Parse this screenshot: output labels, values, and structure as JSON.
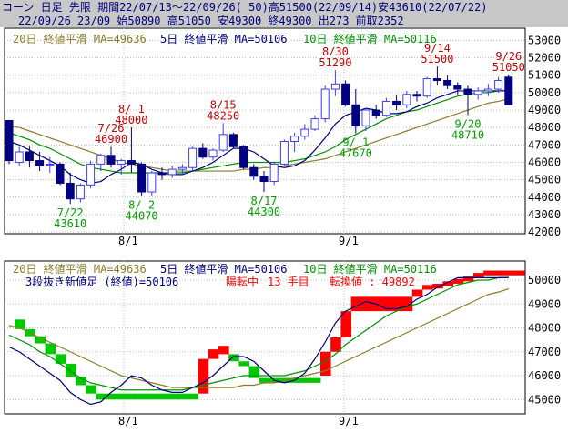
{
  "header": {
    "line1": "コーン 日足 先限 期間22/07/13～22/09/26( 50)高51500(22/09/14)安43610(22/07/22)",
    "line2": "22/09/26 23/09 始50890 高51050 安49300 終49300 出273 前取2352"
  },
  "colors": {
    "up": "#3c3cff",
    "down": "#000080",
    "ma20": "#8b7b2a",
    "ma5": "#000080",
    "ma10": "#009000",
    "label_high": "#c80000",
    "label_low": "#00a000",
    "sanpou_up": "#ff0000",
    "sanpou_down": "#00c800",
    "header_text": "#000080"
  },
  "legend": {
    "ma20": "20日 終値平滑 MA=49636",
    "ma5": "5日 終値平滑 MA=50106",
    "ma10": "10日 終値平滑 MA=50116"
  },
  "sub_info": {
    "title": "3段抜き新値足 (終値)=50106",
    "status": "陽転中",
    "count": "13 手目",
    "reversal": "転換値 : 49892"
  },
  "chart_data": [
    {
      "type": "candlestick",
      "x_labels": [
        "8/1",
        "9/1"
      ],
      "y_ticks": [
        42000,
        43000,
        44000,
        45000,
        46000,
        47000,
        48000,
        49000,
        50000,
        51000,
        52000,
        53000
      ],
      "ylim": [
        41900,
        53700
      ],
      "candles": [
        {
          "o": 48400,
          "h": 48400,
          "l": 45900,
          "c": 46100
        },
        {
          "o": 46000,
          "h": 46900,
          "l": 45800,
          "c": 46600
        },
        {
          "o": 46600,
          "h": 46900,
          "l": 45700,
          "c": 46100
        },
        {
          "o": 46100,
          "h": 46600,
          "l": 45500,
          "c": 45800
        },
        {
          "o": 45900,
          "h": 46300,
          "l": 45400,
          "c": 45900
        },
        {
          "o": 45900,
          "h": 46000,
          "l": 44700,
          "c": 44800
        },
        {
          "o": 44800,
          "h": 45400,
          "l": 43610,
          "c": 43900
        },
        {
          "o": 43900,
          "h": 44800,
          "l": 43700,
          "c": 44700
        },
        {
          "o": 44700,
          "h": 46100,
          "l": 44500,
          "c": 45900
        },
        {
          "o": 45900,
          "h": 46500,
          "l": 45500,
          "c": 46400
        },
        {
          "o": 46400,
          "h": 46900,
          "l": 45700,
          "c": 45900
        },
        {
          "o": 45900,
          "h": 46200,
          "l": 45300,
          "c": 46100
        },
        {
          "o": 46100,
          "h": 48000,
          "l": 45400,
          "c": 45900
        },
        {
          "o": 45900,
          "h": 46000,
          "l": 44070,
          "c": 44300
        },
        {
          "o": 44300,
          "h": 45500,
          "l": 44100,
          "c": 45400
        },
        {
          "o": 45400,
          "h": 45700,
          "l": 45000,
          "c": 45300
        },
        {
          "o": 45300,
          "h": 45800,
          "l": 45100,
          "c": 45600
        },
        {
          "o": 45600,
          "h": 45900,
          "l": 45300,
          "c": 45700
        },
        {
          "o": 45700,
          "h": 46900,
          "l": 45500,
          "c": 46800
        },
        {
          "o": 46800,
          "h": 47100,
          "l": 46200,
          "c": 46300
        },
        {
          "o": 46300,
          "h": 46800,
          "l": 46100,
          "c": 46700
        },
        {
          "o": 46700,
          "h": 48250,
          "l": 46600,
          "c": 47600
        },
        {
          "o": 47600,
          "h": 47700,
          "l": 46800,
          "c": 46900
        },
        {
          "o": 46900,
          "h": 47000,
          "l": 45600,
          "c": 45700
        },
        {
          "o": 45700,
          "h": 45900,
          "l": 45000,
          "c": 45200
        },
        {
          "o": 45200,
          "h": 45500,
          "l": 44300,
          "c": 44900
        },
        {
          "o": 44900,
          "h": 46000,
          "l": 44700,
          "c": 45900
        },
        {
          "o": 45900,
          "h": 47300,
          "l": 45800,
          "c": 47200
        },
        {
          "o": 47200,
          "h": 47700,
          "l": 46600,
          "c": 47500
        },
        {
          "o": 47500,
          "h": 48200,
          "l": 47300,
          "c": 47900
        },
        {
          "o": 47900,
          "h": 48700,
          "l": 47800,
          "c": 48500
        },
        {
          "o": 48500,
          "h": 50400,
          "l": 48300,
          "c": 50200
        },
        {
          "o": 50200,
          "h": 51290,
          "l": 49800,
          "c": 50500
        },
        {
          "o": 50500,
          "h": 50700,
          "l": 49200,
          "c": 49300
        },
        {
          "o": 49300,
          "h": 50200,
          "l": 47670,
          "c": 48100
        },
        {
          "o": 48100,
          "h": 49100,
          "l": 47800,
          "c": 49000
        },
        {
          "o": 49000,
          "h": 49300,
          "l": 48500,
          "c": 48700
        },
        {
          "o": 48700,
          "h": 49700,
          "l": 48600,
          "c": 49500
        },
        {
          "o": 49500,
          "h": 49900,
          "l": 49000,
          "c": 49300
        },
        {
          "o": 49300,
          "h": 50100,
          "l": 49100,
          "c": 49900
        },
        {
          "o": 49900,
          "h": 50100,
          "l": 49500,
          "c": 49800
        },
        {
          "o": 49800,
          "h": 50900,
          "l": 49700,
          "c": 50800
        },
        {
          "o": 50800,
          "h": 51500,
          "l": 50400,
          "c": 50700
        },
        {
          "o": 50700,
          "h": 51000,
          "l": 50200,
          "c": 50400
        },
        {
          "o": 50400,
          "h": 50600,
          "l": 49900,
          "c": 50200
        },
        {
          "o": 50200,
          "h": 50400,
          "l": 48710,
          "c": 49900
        },
        {
          "o": 49900,
          "h": 50300,
          "l": 49600,
          "c": 50100
        },
        {
          "o": 50100,
          "h": 50500,
          "l": 49800,
          "c": 50200
        },
        {
          "o": 50200,
          "h": 50900,
          "l": 50000,
          "c": 50700
        },
        {
          "o": 50890,
          "h": 51050,
          "l": 49300,
          "c": 49300
        }
      ],
      "ma5": [
        47200,
        47000,
        46700,
        46400,
        46100,
        45800,
        45300,
        45000,
        44800,
        44900,
        45300,
        45600,
        46000,
        45900,
        45600,
        45400,
        45300,
        45300,
        45500,
        45700,
        46000,
        46400,
        46800,
        46800,
        46600,
        46200,
        45800,
        45700,
        45800,
        46100,
        46700,
        47400,
        48200,
        48700,
        48900,
        49100,
        49000,
        48800,
        48800,
        48900,
        49200,
        49400,
        49700,
        49900,
        50100,
        50100,
        50100,
        50100,
        50100,
        50106
      ],
      "ma10": [
        47700,
        47500,
        47300,
        47000,
        46800,
        46500,
        46200,
        45900,
        45700,
        45600,
        45500,
        45400,
        45400,
        45400,
        45400,
        45400,
        45400,
        45400,
        45500,
        45600,
        45700,
        45800,
        45900,
        46000,
        46000,
        46000,
        46000,
        46000,
        46100,
        46200,
        46400,
        46600,
        46900,
        47300,
        47600,
        47900,
        48200,
        48500,
        48700,
        48900,
        49000,
        49200,
        49400,
        49600,
        49800,
        49900,
        50000,
        50000,
        50100,
        50116
      ],
      "ma20": [
        48100,
        48000,
        47800,
        47600,
        47400,
        47200,
        47000,
        46800,
        46600,
        46400,
        46200,
        46000,
        45900,
        45800,
        45700,
        45600,
        45500,
        45500,
        45500,
        45500,
        45500,
        45500,
        45500,
        45600,
        45600,
        45700,
        45700,
        45800,
        45900,
        46000,
        46100,
        46200,
        46400,
        46600,
        46800,
        47000,
        47200,
        47400,
        47600,
        47800,
        48000,
        48200,
        48400,
        48600,
        48800,
        49000,
        49200,
        49400,
        49500,
        49636
      ],
      "annotations": [
        {
          "i": 6,
          "kind": "low",
          "date": "7/22",
          "price": "43610"
        },
        {
          "i": 10,
          "kind": "high",
          "date": "7/26",
          "price": "46900"
        },
        {
          "i": 12,
          "kind": "high",
          "date": "8/ 1",
          "price": "48000"
        },
        {
          "i": 13,
          "kind": "low",
          "date": "8/ 2",
          "price": "44070"
        },
        {
          "i": 21,
          "kind": "high",
          "date": "8/15",
          "price": "48250"
        },
        {
          "i": 25,
          "kind": "low",
          "date": "8/17",
          "price": "44300"
        },
        {
          "i": 32,
          "kind": "high",
          "date": "8/30",
          "price": "51290"
        },
        {
          "i": 34,
          "kind": "low",
          "date": "9/ 1",
          "price": "47670"
        },
        {
          "i": 42,
          "kind": "high",
          "date": "9/14",
          "price": "51500"
        },
        {
          "i": 45,
          "kind": "low",
          "date": "9/20",
          "price": "48710"
        },
        {
          "i": 49,
          "kind": "high",
          "date": "9/26",
          "price": "51050"
        }
      ]
    },
    {
      "type": "new_price_three_line_break",
      "x_labels": [
        "8/1",
        "9/1"
      ],
      "y_ticks": [
        45000,
        46000,
        47000,
        48000,
        49000,
        50000
      ],
      "ylim": [
        44400,
        50800
      ],
      "bricks": [
        {
          "c": "d",
          "top": 48350,
          "bot": 47950
        },
        {
          "c": "d",
          "top": 47950,
          "bot": 47650
        },
        {
          "c": "d",
          "top": 47650,
          "bot": 47350
        },
        {
          "c": "d",
          "top": 47350,
          "bot": 46900
        },
        {
          "c": "d",
          "top": 46900,
          "bot": 46500
        },
        {
          "c": "d",
          "top": 46500,
          "bot": 45950
        },
        {
          "c": "d",
          "top": 45950,
          "bot": 45600
        },
        {
          "c": "d",
          "top": 45600,
          "bot": 45250
        },
        {
          "c": "d",
          "top": 45250,
          "bot": 45000
        },
        {
          "c": "d",
          "top": 45250,
          "bot": 45000
        },
        {
          "c": "d",
          "top": 45250,
          "bot": 45000
        },
        {
          "c": "d",
          "top": 45250,
          "bot": 45000
        },
        {
          "c": "d",
          "top": 45250,
          "bot": 45000
        },
        {
          "c": "d",
          "top": 45250,
          "bot": 45000
        },
        {
          "c": "d",
          "top": 45250,
          "bot": 45000
        },
        {
          "c": "d",
          "top": 45250,
          "bot": 45000
        },
        {
          "c": "d",
          "top": 45250,
          "bot": 45000
        },
        {
          "c": "d",
          "top": 45250,
          "bot": 45000
        },
        {
          "c": "u",
          "top": 46700,
          "bot": 45250
        },
        {
          "c": "u",
          "top": 47100,
          "bot": 46700
        },
        {
          "c": "u",
          "top": 47250,
          "bot": 46900
        },
        {
          "c": "d",
          "top": 46900,
          "bot": 46600
        },
        {
          "c": "d",
          "top": 46600,
          "bot": 46400
        },
        {
          "c": "d",
          "top": 46400,
          "bot": 45900
        },
        {
          "c": "d",
          "top": 45900,
          "bot": 45700
        },
        {
          "c": "d",
          "top": 45900,
          "bot": 45700
        },
        {
          "c": "d",
          "top": 45900,
          "bot": 45700
        },
        {
          "c": "d",
          "top": 45900,
          "bot": 45700
        },
        {
          "c": "d",
          "top": 45900,
          "bot": 45700
        },
        {
          "c": "d",
          "top": 45900,
          "bot": 45700
        },
        {
          "c": "u",
          "top": 47000,
          "bot": 46000
        },
        {
          "c": "u",
          "top": 47600,
          "bot": 47000
        },
        {
          "c": "u",
          "top": 48700,
          "bot": 47600
        },
        {
          "c": "u",
          "top": 49300,
          "bot": 48700
        },
        {
          "c": "u",
          "top": 49300,
          "bot": 48700
        },
        {
          "c": "u",
          "top": 49300,
          "bot": 48700
        },
        {
          "c": "u",
          "top": 49300,
          "bot": 48700
        },
        {
          "c": "u",
          "top": 49300,
          "bot": 48700
        },
        {
          "c": "u",
          "top": 49300,
          "bot": 48700
        },
        {
          "c": "u",
          "top": 49600,
          "bot": 49300
        },
        {
          "c": "u",
          "top": 49800,
          "bot": 49600
        },
        {
          "c": "u",
          "top": 49850,
          "bot": 49650
        },
        {
          "c": "u",
          "top": 49950,
          "bot": 49750
        },
        {
          "c": "u",
          "top": 50050,
          "bot": 49850
        },
        {
          "c": "u",
          "top": 50150,
          "bot": 49950
        },
        {
          "c": "u",
          "top": 50300,
          "bot": 50100
        },
        {
          "c": "u",
          "top": 50400,
          "bot": 50200
        },
        {
          "c": "u",
          "top": 50400,
          "bot": 50200
        },
        {
          "c": "u",
          "top": 50400,
          "bot": 50200
        },
        {
          "c": "u",
          "top": 50400,
          "bot": 50200
        }
      ]
    }
  ]
}
